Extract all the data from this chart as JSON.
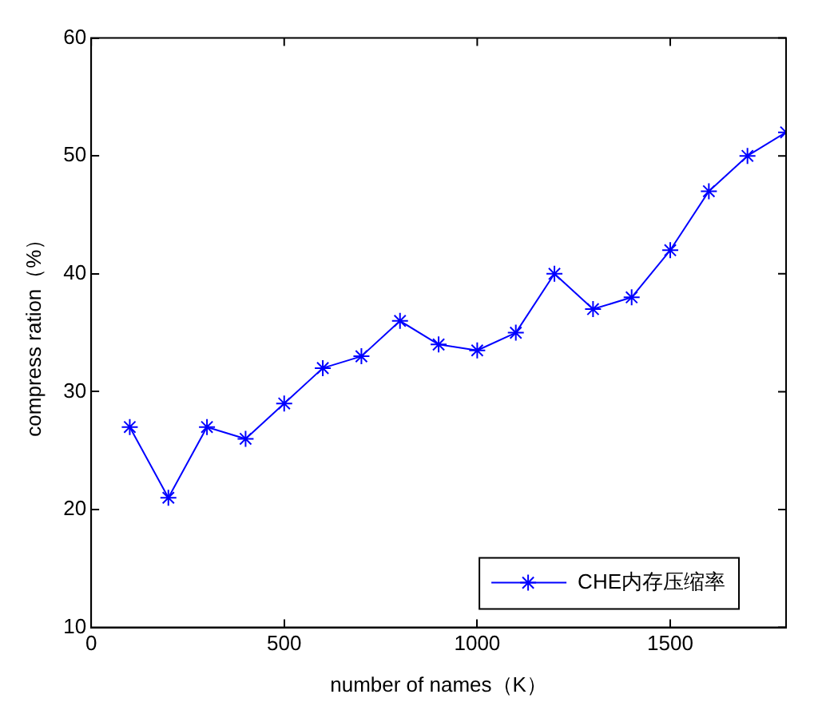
{
  "chart_data": {
    "type": "line",
    "xlabel": "number of names（K）",
    "ylabel": "compress ration（%）",
    "x": [
      100,
      200,
      300,
      400,
      500,
      600,
      700,
      800,
      900,
      1000,
      1100,
      1200,
      1300,
      1400,
      1500,
      1600,
      1700,
      1800
    ],
    "series": [
      {
        "name": "CHE内存压缩率",
        "color": "#0000ff",
        "values": [
          27,
          21,
          27,
          26,
          29,
          32,
          33,
          36,
          34,
          33.5,
          35,
          40,
          37,
          38,
          42,
          47,
          50,
          52
        ]
      }
    ],
    "xlim": [
      0,
      1800
    ],
    "xticks": [
      0,
      500,
      1000,
      1500
    ],
    "ylim": [
      10,
      60
    ],
    "yticks": [
      10,
      20,
      30,
      40,
      50,
      60
    ],
    "grid": false,
    "legend": "bottom right",
    "marker": "cross",
    "line_style": "solid"
  }
}
